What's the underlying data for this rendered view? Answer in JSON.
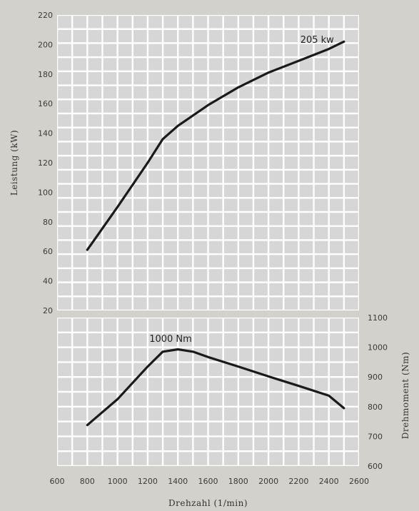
{
  "chart_data": [
    {
      "type": "line",
      "xlabel": "Drehzahl (1/min)",
      "ylabel": "Leistung (kW)",
      "xlim": [
        600,
        2600
      ],
      "ylim": [
        20,
        220
      ],
      "x_ticks": [
        "600",
        "800",
        "1000",
        "1200",
        "1400",
        "1600",
        "1800",
        "2000",
        "2200",
        "2400",
        "2600"
      ],
      "y_ticks": [
        "20",
        "40",
        "60",
        "80",
        "100",
        "120",
        "140",
        "160",
        "180",
        "200",
        "220"
      ],
      "grid": true,
      "series": [
        {
          "x": [
            800,
            1000,
            1200,
            1300,
            1400,
            1600,
            1800,
            2000,
            2200,
            2400,
            2500
          ],
          "y": [
            61,
            90,
            120,
            136,
            145,
            159,
            171,
            181,
            189,
            197,
            202
          ]
        }
      ],
      "annotations": [
        {
          "text": "205 kw",
          "x": 2400,
          "y": 205
        }
      ],
      "color": "#1a1a1a"
    },
    {
      "type": "line",
      "xlabel": "Drehzahl (1/min)",
      "ylabel": "Drehmoment (Nm)",
      "xlim": [
        600,
        2600
      ],
      "ylim": [
        600,
        1100
      ],
      "x_ticks": [
        "600",
        "800",
        "1000",
        "1200",
        "1400",
        "1600",
        "1800",
        "2000",
        "2200",
        "2400",
        "2600"
      ],
      "y_ticks": [
        "600",
        "700",
        "800",
        "900",
        "1000",
        "1100"
      ],
      "grid": true,
      "series": [
        {
          "x": [
            800,
            1000,
            1200,
            1300,
            1400,
            1500,
            1600,
            1800,
            2000,
            2200,
            2400,
            2500
          ],
          "y": [
            738,
            825,
            935,
            985,
            993,
            985,
            967,
            935,
            902,
            870,
            837,
            795
          ]
        }
      ],
      "annotations": [
        {
          "text": "1000 Nm",
          "x": 1400,
          "y": 1030
        }
      ],
      "color": "#1a1a1a"
    }
  ]
}
